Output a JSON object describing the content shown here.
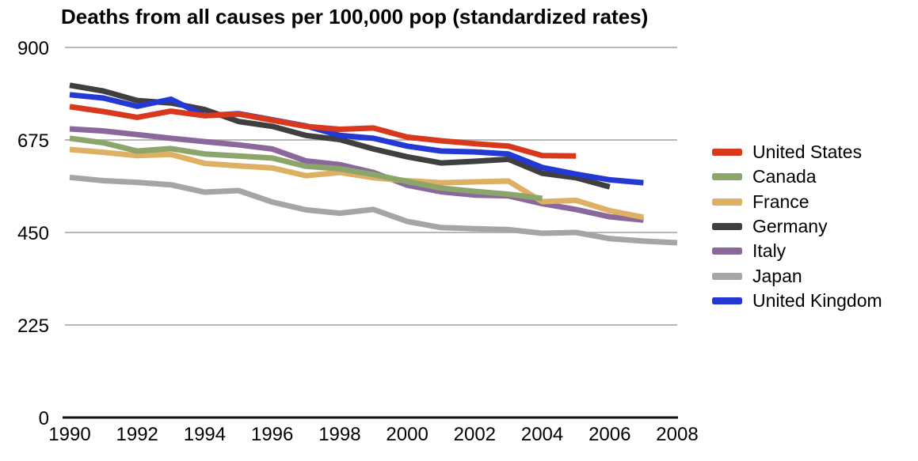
{
  "title": "Deaths from all causes per 100,000 pop (standardized rates)",
  "colors": {
    "background": "#ffffff",
    "gridline": "#b7b7b7",
    "axis_line": "#111111",
    "tick_text": "#000000",
    "title_text": "#000000"
  },
  "chart_data": {
    "type": "line",
    "title": "Deaths from all causes per 100,000 pop (standardized rates)",
    "xlabel": "",
    "ylabel": "",
    "xlim": [
      1990,
      2008
    ],
    "ylim": [
      0,
      900
    ],
    "yticks": [
      0,
      225,
      450,
      675,
      900
    ],
    "xticks": [
      1990,
      1992,
      1994,
      1996,
      1998,
      2000,
      2002,
      2004,
      2006,
      2008
    ],
    "grid": true,
    "legend_position": "right",
    "series": [
      {
        "name": "United States",
        "color": "#d8391d",
        "start_year": 1990,
        "values": [
          756,
          744,
          730,
          745,
          734,
          738,
          723,
          708,
          701,
          704,
          682,
          673,
          666,
          660,
          637,
          636
        ]
      },
      {
        "name": "Canada",
        "color": "#8ba56b",
        "start_year": 1990,
        "values": [
          679,
          668,
          648,
          654,
          641,
          636,
          631,
          611,
          605,
          591,
          574,
          558,
          550,
          543,
          533
        ]
      },
      {
        "name": "France",
        "color": "#ddb063",
        "start_year": 1990,
        "values": [
          652,
          645,
          637,
          640,
          618,
          612,
          607,
          588,
          596,
          583,
          576,
          571,
          573,
          575,
          525,
          528,
          503,
          487
        ]
      },
      {
        "name": "Germany",
        "color": "#3f3f3f",
        "start_year": 1990,
        "values": [
          808,
          794,
          771,
          765,
          749,
          720,
          708,
          686,
          676,
          653,
          634,
          619,
          623,
          628,
          594,
          583,
          561
        ]
      },
      {
        "name": "Italy",
        "color": "#8a689b",
        "start_year": 1990,
        "values": [
          702,
          697,
          688,
          679,
          671,
          663,
          653,
          624,
          615,
          596,
          565,
          549,
          541,
          539,
          520,
          506,
          488,
          480
        ]
      },
      {
        "name": "Japan",
        "color": "#a5a5a5",
        "start_year": 1990,
        "values": [
          584,
          576,
          572,
          566,
          548,
          552,
          524,
          505,
          497,
          506,
          477,
          462,
          459,
          457,
          448,
          450,
          435,
          429,
          425
        ]
      },
      {
        "name": "United Kingdom",
        "color": "#2438d3",
        "start_year": 1990,
        "values": [
          785,
          777,
          757,
          774,
          734,
          739,
          724,
          709,
          686,
          679,
          660,
          648,
          646,
          641,
          608,
          592,
          578,
          571
        ]
      }
    ],
    "draw_order": [
      "Japan",
      "Italy",
      "France",
      "Canada",
      "Germany",
      "United Kingdom",
      "United States"
    ]
  }
}
